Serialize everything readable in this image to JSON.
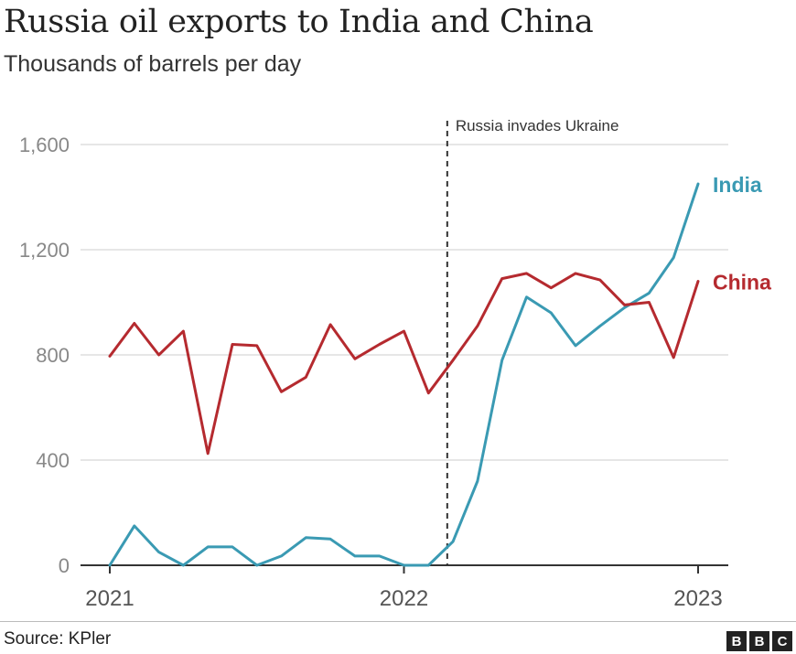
{
  "title": "Russia oil exports to India and China",
  "subtitle": "Thousands of barrels per day",
  "source": "Source: KPler",
  "logo": [
    "B",
    "B",
    "C"
  ],
  "colors": {
    "India": "#3a9ab3",
    "China": "#b52a2f",
    "grid": "#dddddd",
    "axis": "#333333",
    "tick": "#888888"
  },
  "chart_data": {
    "type": "line",
    "title": "Russia oil exports to India and China",
    "ylabel": "Thousands of barrels per day",
    "xlabel": "",
    "ylim": [
      0,
      1600
    ],
    "yticks": [
      0,
      400,
      800,
      1200,
      1600
    ],
    "ytick_labels": [
      "0",
      "400",
      "800",
      "1,200",
      "1,600"
    ],
    "xticks": [
      "2021-01",
      "2022-01",
      "2023-01"
    ],
    "xtick_labels": [
      "2021",
      "2022",
      "2023"
    ],
    "grid": true,
    "legend": "direct labels at line ends",
    "x": [
      "2021-01",
      "2021-02",
      "2021-03",
      "2021-04",
      "2021-05",
      "2021-06",
      "2021-07",
      "2021-08",
      "2021-09",
      "2021-10",
      "2021-11",
      "2021-12",
      "2022-01",
      "2022-02",
      "2022-03",
      "2022-04",
      "2022-05",
      "2022-06",
      "2022-07",
      "2022-08",
      "2022-09",
      "2022-10",
      "2022-11",
      "2022-12",
      "2023-01"
    ],
    "series": [
      {
        "name": "India",
        "values": [
          0,
          150,
          50,
          0,
          70,
          70,
          0,
          35,
          105,
          100,
          35,
          35,
          0,
          0,
          90,
          320,
          780,
          1020,
          960,
          835,
          910,
          980,
          1035,
          1170,
          1450
        ]
      },
      {
        "name": "China",
        "values": [
          795,
          920,
          800,
          890,
          425,
          840,
          835,
          660,
          715,
          915,
          785,
          840,
          890,
          655,
          780,
          910,
          1090,
          1110,
          1055,
          1110,
          1085,
          990,
          1000,
          790,
          1080
        ]
      }
    ],
    "annotations": [
      {
        "x": "2022-02-24",
        "text": "Russia invades Ukraine",
        "style": "dashed vertical line"
      }
    ]
  }
}
